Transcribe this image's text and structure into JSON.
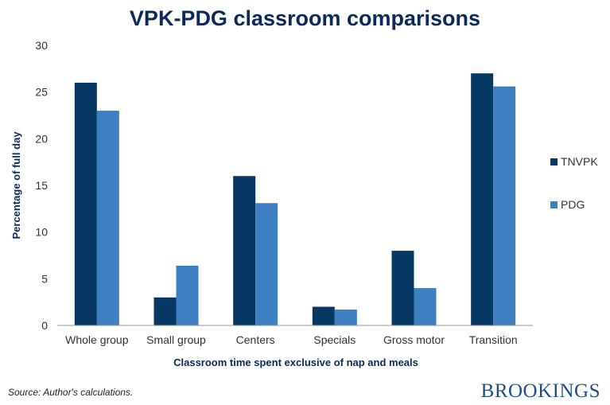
{
  "chart_data": {
    "type": "bar",
    "title": "VPK-PDG classroom comparisons",
    "xlabel": "Classroom time spent exclusive of nap and meals",
    "ylabel": "Percentage of full day",
    "categories": [
      "Whole group",
      "Small group",
      "Centers",
      "Specials",
      "Gross motor",
      "Transition"
    ],
    "series": [
      {
        "name": "TNVPK",
        "color": "#073763",
        "values": [
          26,
          3,
          16,
          2,
          8,
          27
        ]
      },
      {
        "name": "PDG",
        "color": "#3d7fc0",
        "values": [
          23,
          6.4,
          13.1,
          1.7,
          4,
          25.6
        ]
      }
    ],
    "ylim": [
      0,
      30
    ],
    "yticks": [
      0,
      5,
      10,
      15,
      20,
      25,
      30
    ],
    "grid": false,
    "legend": "right"
  },
  "source": "Source: Author's calculations.",
  "logo_text": "BROOKINGS"
}
